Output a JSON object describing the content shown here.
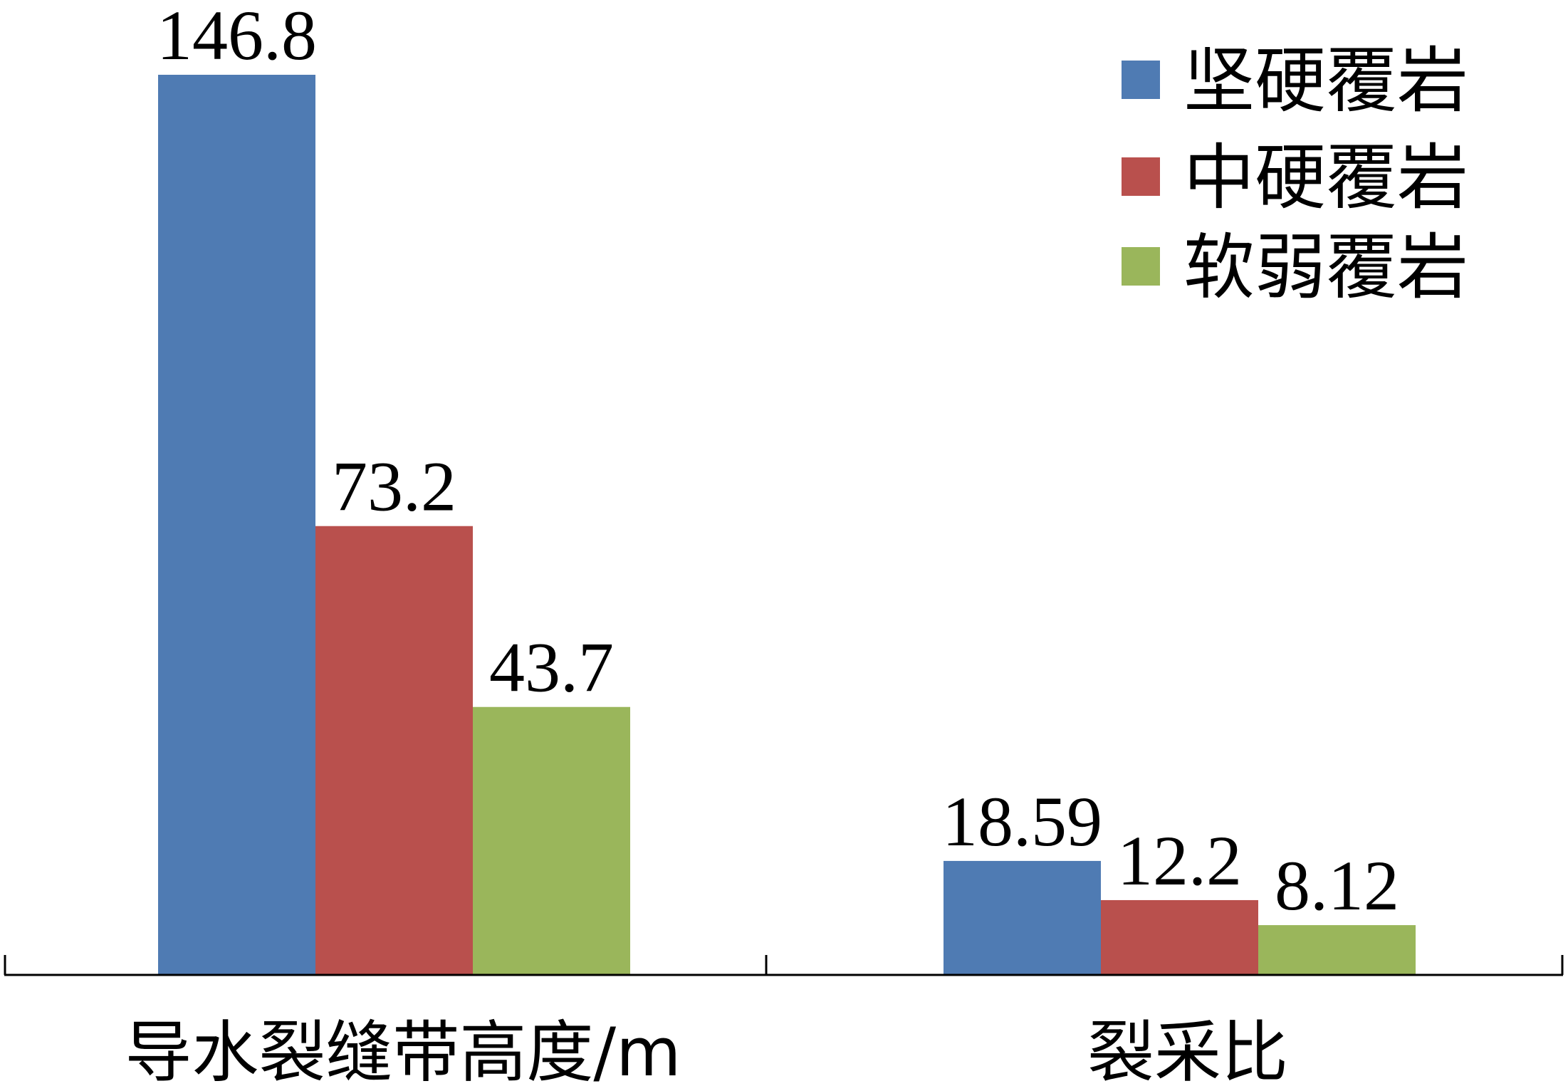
{
  "chart_data": {
    "type": "bar",
    "categories": [
      "导水裂缝带高度/m",
      "裂采比"
    ],
    "series": [
      {
        "name": "坚硬覆岩",
        "color": "#4f7bb3",
        "values": [
          146.8,
          18.59
        ],
        "labels": [
          "146.8",
          "18.59"
        ]
      },
      {
        "name": "中硬覆岩",
        "color": "#b9504d",
        "values": [
          73.2,
          12.2
        ],
        "labels": [
          "73.2",
          "12.2"
        ]
      },
      {
        "name": "软弱覆岩",
        "color": "#9ab65b",
        "values": [
          43.7,
          8.12
        ],
        "labels": [
          "43.7",
          "8.12"
        ]
      }
    ],
    "ylim": [
      0,
      146.8
    ],
    "grid": false,
    "legend": "top-right",
    "axis_color": "#000000"
  }
}
